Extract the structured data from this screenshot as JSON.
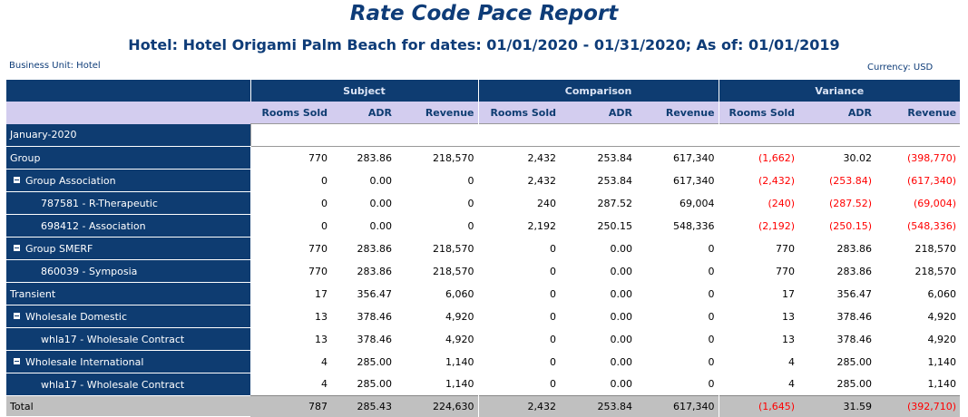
{
  "report": {
    "title": "Rate Code Pace Report",
    "subtitle": "Hotel: Hotel Origami Palm Beach for dates: 01/01/2020 - 01/31/2020; As of: 01/01/2019",
    "business_unit": "Business Unit: Hotel",
    "currency": "Currency: USD"
  },
  "columns": {
    "groups": [
      "Subject",
      "Comparison",
      "Variance"
    ],
    "metrics": [
      "Rooms Sold",
      "ADR",
      "Revenue"
    ]
  },
  "colors": {
    "header_bg": "#0e3c71",
    "subheader_bg": "#d3cdef",
    "negative": "#ff0000",
    "total_bg": "#c0c0c0"
  },
  "period": "January-2020",
  "rows": [
    {
      "label": "Group",
      "level": 1,
      "toggle": false,
      "subject": [
        "770",
        "283.86",
        "218,570"
      ],
      "comparison": [
        "2,432",
        "253.84",
        "617,340"
      ],
      "variance": [
        "(1,662)",
        "30.02",
        "(398,770)"
      ]
    },
    {
      "label": "Group Association",
      "level": 2,
      "toggle": true,
      "subject": [
        "0",
        "0.00",
        "0"
      ],
      "comparison": [
        "2,432",
        "253.84",
        "617,340"
      ],
      "variance": [
        "(2,432)",
        "(253.84)",
        "(617,340)"
      ]
    },
    {
      "label": "787581 - R-Therapeutic",
      "level": 3,
      "toggle": false,
      "subject": [
        "0",
        "0.00",
        "0"
      ],
      "comparison": [
        "240",
        "287.52",
        "69,004"
      ],
      "variance": [
        "(240)",
        "(287.52)",
        "(69,004)"
      ]
    },
    {
      "label": "698412 - Association",
      "level": 3,
      "toggle": false,
      "subject": [
        "0",
        "0.00",
        "0"
      ],
      "comparison": [
        "2,192",
        "250.15",
        "548,336"
      ],
      "variance": [
        "(2,192)",
        "(250.15)",
        "(548,336)"
      ]
    },
    {
      "label": "Group SMERF",
      "level": 2,
      "toggle": true,
      "subject": [
        "770",
        "283.86",
        "218,570"
      ],
      "comparison": [
        "0",
        "0.00",
        "0"
      ],
      "variance": [
        "770",
        "283.86",
        "218,570"
      ]
    },
    {
      "label": "860039 - Symposia",
      "level": 3,
      "toggle": false,
      "subject": [
        "770",
        "283.86",
        "218,570"
      ],
      "comparison": [
        "0",
        "0.00",
        "0"
      ],
      "variance": [
        "770",
        "283.86",
        "218,570"
      ]
    },
    {
      "label": "Transient",
      "level": 1,
      "toggle": false,
      "subject": [
        "17",
        "356.47",
        "6,060"
      ],
      "comparison": [
        "0",
        "0.00",
        "0"
      ],
      "variance": [
        "17",
        "356.47",
        "6,060"
      ]
    },
    {
      "label": "Wholesale Domestic",
      "level": 2,
      "toggle": true,
      "subject": [
        "13",
        "378.46",
        "4,920"
      ],
      "comparison": [
        "0",
        "0.00",
        "0"
      ],
      "variance": [
        "13",
        "378.46",
        "4,920"
      ]
    },
    {
      "label": "whla17 - Wholesale  Contract",
      "level": 3,
      "toggle": false,
      "subject": [
        "13",
        "378.46",
        "4,920"
      ],
      "comparison": [
        "0",
        "0.00",
        "0"
      ],
      "variance": [
        "13",
        "378.46",
        "4,920"
      ]
    },
    {
      "label": "Wholesale International",
      "level": 2,
      "toggle": true,
      "subject": [
        "4",
        "285.00",
        "1,140"
      ],
      "comparison": [
        "0",
        "0.00",
        "0"
      ],
      "variance": [
        "4",
        "285.00",
        "1,140"
      ]
    },
    {
      "label": "whla17 - Wholesale Contract",
      "level": 3,
      "toggle": false,
      "subject": [
        "4",
        "285.00",
        "1,140"
      ],
      "comparison": [
        "0",
        "0.00",
        "0"
      ],
      "variance": [
        "4",
        "285.00",
        "1,140"
      ]
    }
  ],
  "total": {
    "label": "Total",
    "subject": [
      "787",
      "285.43",
      "224,630"
    ],
    "comparison": [
      "2,432",
      "253.84",
      "617,340"
    ],
    "variance": [
      "(1,645)",
      "31.59",
      "(392,710)"
    ]
  }
}
